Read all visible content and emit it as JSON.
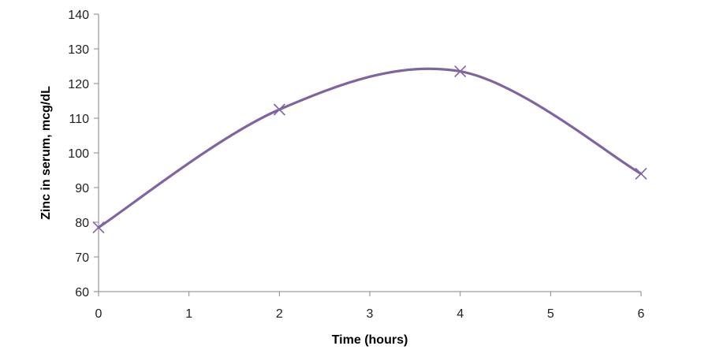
{
  "chart_data": {
    "type": "line",
    "title": "",
    "xlabel": "Time (hours)",
    "ylabel": "Zinc in serum, mcg/dL",
    "xlim": [
      0,
      6
    ],
    "ylim": [
      60,
      140
    ],
    "xticks": [
      0,
      1,
      2,
      3,
      4,
      5,
      6
    ],
    "yticks": [
      60,
      70,
      80,
      90,
      100,
      110,
      120,
      130,
      140
    ],
    "grid": false,
    "legend": "none",
    "smooth": true,
    "marker": "x",
    "series": [
      {
        "color": "#8064a2",
        "x": [
          0,
          2,
          4,
          6
        ],
        "y": [
          78.5,
          112.5,
          123.5,
          94
        ]
      }
    ]
  }
}
